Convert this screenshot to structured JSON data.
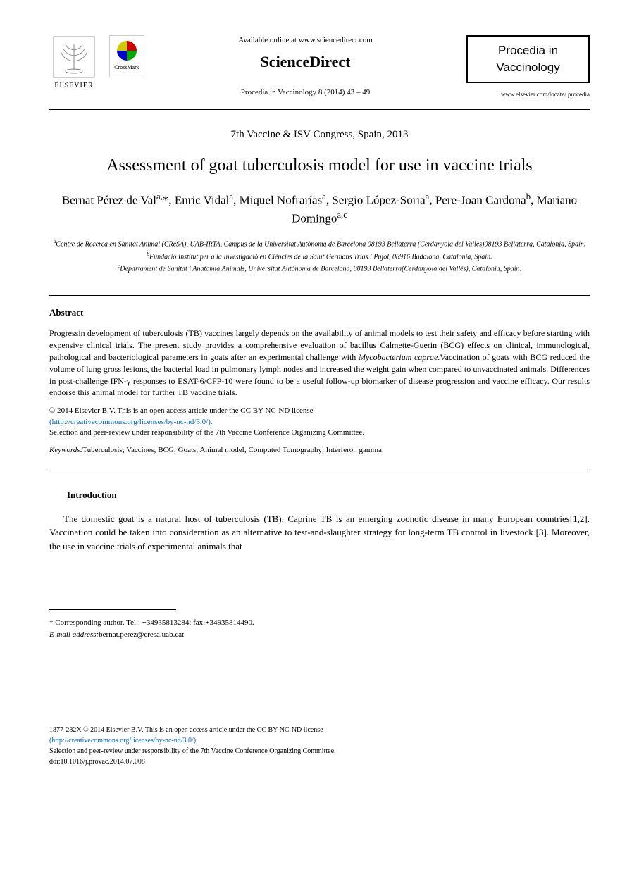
{
  "header": {
    "available_online": "Available online at www.sciencedirect.com",
    "sciencedirect": "ScienceDirect",
    "journal_ref": "Procedia in Vaccinology 8 (2014) 43 – 49",
    "elsevier_label": "ELSEVIER",
    "crossmark_label": "CrossMark",
    "journal_name_1": "Procedia in",
    "journal_name_2": "Vaccinology",
    "journal_url": "www.elsevier.com/locate/ procedia"
  },
  "event": "7th Vaccine & ISV Congress, Spain, 2013",
  "title": "Assessment of goat tuberculosis model for use in vaccine trials",
  "authors_html": "Bernat Pérez de Val<sup>a,</sup>*, Enric Vidal<sup>a</sup>, Miquel Nofrarías<sup>a</sup>, Sergio López-Soria<sup>a</sup>, Pere-Joan Cardona<sup>b</sup>, Mariano Domingo<sup>a,c</sup>",
  "affiliations": {
    "a": "Centre de Recerca en Sanitat Animal (CReSA), UAB-IRTA, Campus de la Universitat Autònoma de Barcelona 08193 Bellaterra (Cerdanyola del Vallès)08193 Bellaterra, Catalonia, Spain.",
    "b": "Fundació Institut per a la Investigació en Ciències de la Salut Germans Trias i Pujol, 08916 Badalona,  Catalonia, Spain.",
    "c": "Departament de Sanitat i Anatomia Animals, Universitat Autònoma de Barcelona, 08193 Bellaterra(Cerdanyola del Vallès), Catalonia, Spain."
  },
  "abstract": {
    "heading": "Abstract",
    "text": "Progressin development of tuberculosis (TB) vaccines largely depends on the availability of animal models to test their safety and efficacy before starting with expensive clinical trials. The present study provides a comprehensive evaluation of bacillus Calmette-Guerin (BCG) effects on clinical, immunological, pathological and bacteriological parameters in goats after an experimental challenge with Mycobacterium caprae.Vaccination of goats with BCG reduced the volume of lung gross lesions, the bacterial load in pulmonary lymph nodes and increased the weight gain when compared to unvaccinated animals. Differences in post-challenge IFN-γ responses to ESAT-6/CFP-10 were found to be a useful follow-up biomarker of disease progression and vaccine efficacy. Our results endorse this animal model for further TB vaccine trials.",
    "copyright_line1": "© 2014 Elsevier B.V. This is an open access article under the CC BY-NC-ND license",
    "license_url": "(http://creativecommons.org/licenses/by-nc-nd/3.0/).",
    "peer_review": "Selection and peer-review under responsibility of the 7th Vaccine Conference Organizing Committee."
  },
  "keywords": {
    "label": "Keywords:",
    "text": "Tuberculosis; Vaccines; BCG; Goats; Animal  model; Computed Tomography; Interferon gamma."
  },
  "introduction": {
    "heading": "Introduction",
    "text": "The domestic goat is a natural host of tuberculosis (TB). Caprine TB is an emerging zoonotic disease in many European countries[1,2]. Vaccination could be taken into consideration as an alternative to test-and-slaughter strategy for long-term TB control in livestock [3]. Moreover, the use in vaccine trials of experimental animals that"
  },
  "corresponding": {
    "line1": "* Corresponding author. Tel.: +34935813284; fax:+34935814490.",
    "email_label": "E-mail address:",
    "email": "bernat.perez@cresa.uab.cat"
  },
  "footer": {
    "issn_line": "1877-282X © 2014 Elsevier B.V. This is an open access article under the CC BY-NC-ND license",
    "license_url": "(http://creativecommons.org/licenses/by-nc-nd/3.0/).",
    "peer_review": "Selection and peer-review under responsibility of the 7th Vaccine Conference Organizing Committee.",
    "doi": "doi:10.1016/j.provac.2014.07.008"
  }
}
